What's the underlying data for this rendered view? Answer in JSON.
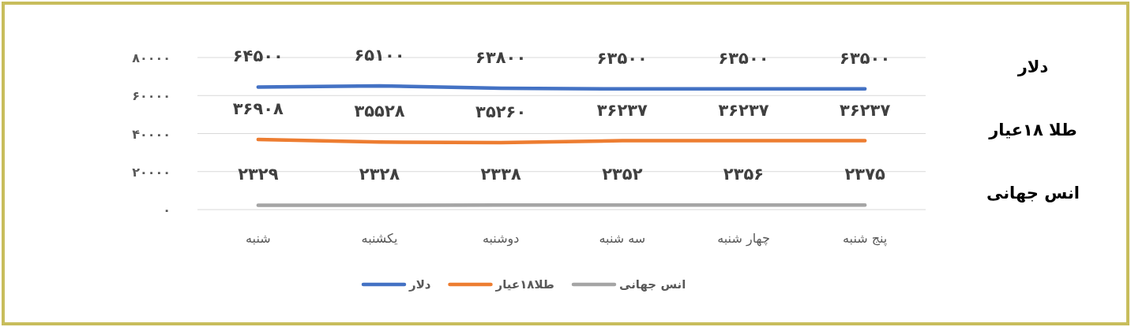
{
  "chart_data": {
    "type": "line",
    "categories": [
      "شنبه",
      "یکشنبه",
      "دوشنبه",
      "سه شنبه",
      "چهار شنبه",
      "پنج شنبه"
    ],
    "series": [
      {
        "name": "دلار",
        "color": "#4472c4",
        "values": [
          64500,
          65100,
          63800,
          63500,
          63500,
          63500
        ],
        "value_labels": [
          "۶۴۵۰۰",
          "۶۵۱۰۰",
          "۶۳۸۰۰",
          "۶۳۵۰۰",
          "۶۳۵۰۰",
          "۶۳۵۰۰"
        ]
      },
      {
        "name": "طلا۱۸عیار",
        "color": "#ed7d31",
        "values": [
          36908,
          35528,
          35260,
          36237,
          36237,
          36237
        ],
        "value_labels": [
          "۳۶۹۰۸",
          "۳۵۵۲۸",
          "۳۵۲۶۰",
          "۳۶۲۳۷",
          "۳۶۲۳۷",
          "۳۶۲۳۷"
        ]
      },
      {
        "name": "انس جهانی",
        "color": "#a5a5a5",
        "values": [
          2329,
          2328,
          2338,
          2352,
          2356,
          2375
        ],
        "value_labels": [
          "۲۳۲۹",
          "۲۳۲۸",
          "۲۳۳۸",
          "۲۳۵۲",
          "۲۳۵۶",
          "۲۳۷۵"
        ]
      }
    ],
    "ylim": [
      0,
      80000
    ],
    "yticks": [
      {
        "value": 0,
        "label": "۰"
      },
      {
        "value": 20000,
        "label": "۲۰۰۰۰"
      },
      {
        "value": 40000,
        "label": "۴۰۰۰۰"
      },
      {
        "value": 60000,
        "label": "۶۰۰۰۰"
      },
      {
        "value": 80000,
        "label": "۸۰۰۰۰"
      }
    ],
    "grid": "y",
    "legend": "bottom",
    "marker": "none",
    "line_style": "solid",
    "annotations": [
      "دلار",
      "طلا ۱۸عیار",
      "انس جهانی"
    ]
  }
}
